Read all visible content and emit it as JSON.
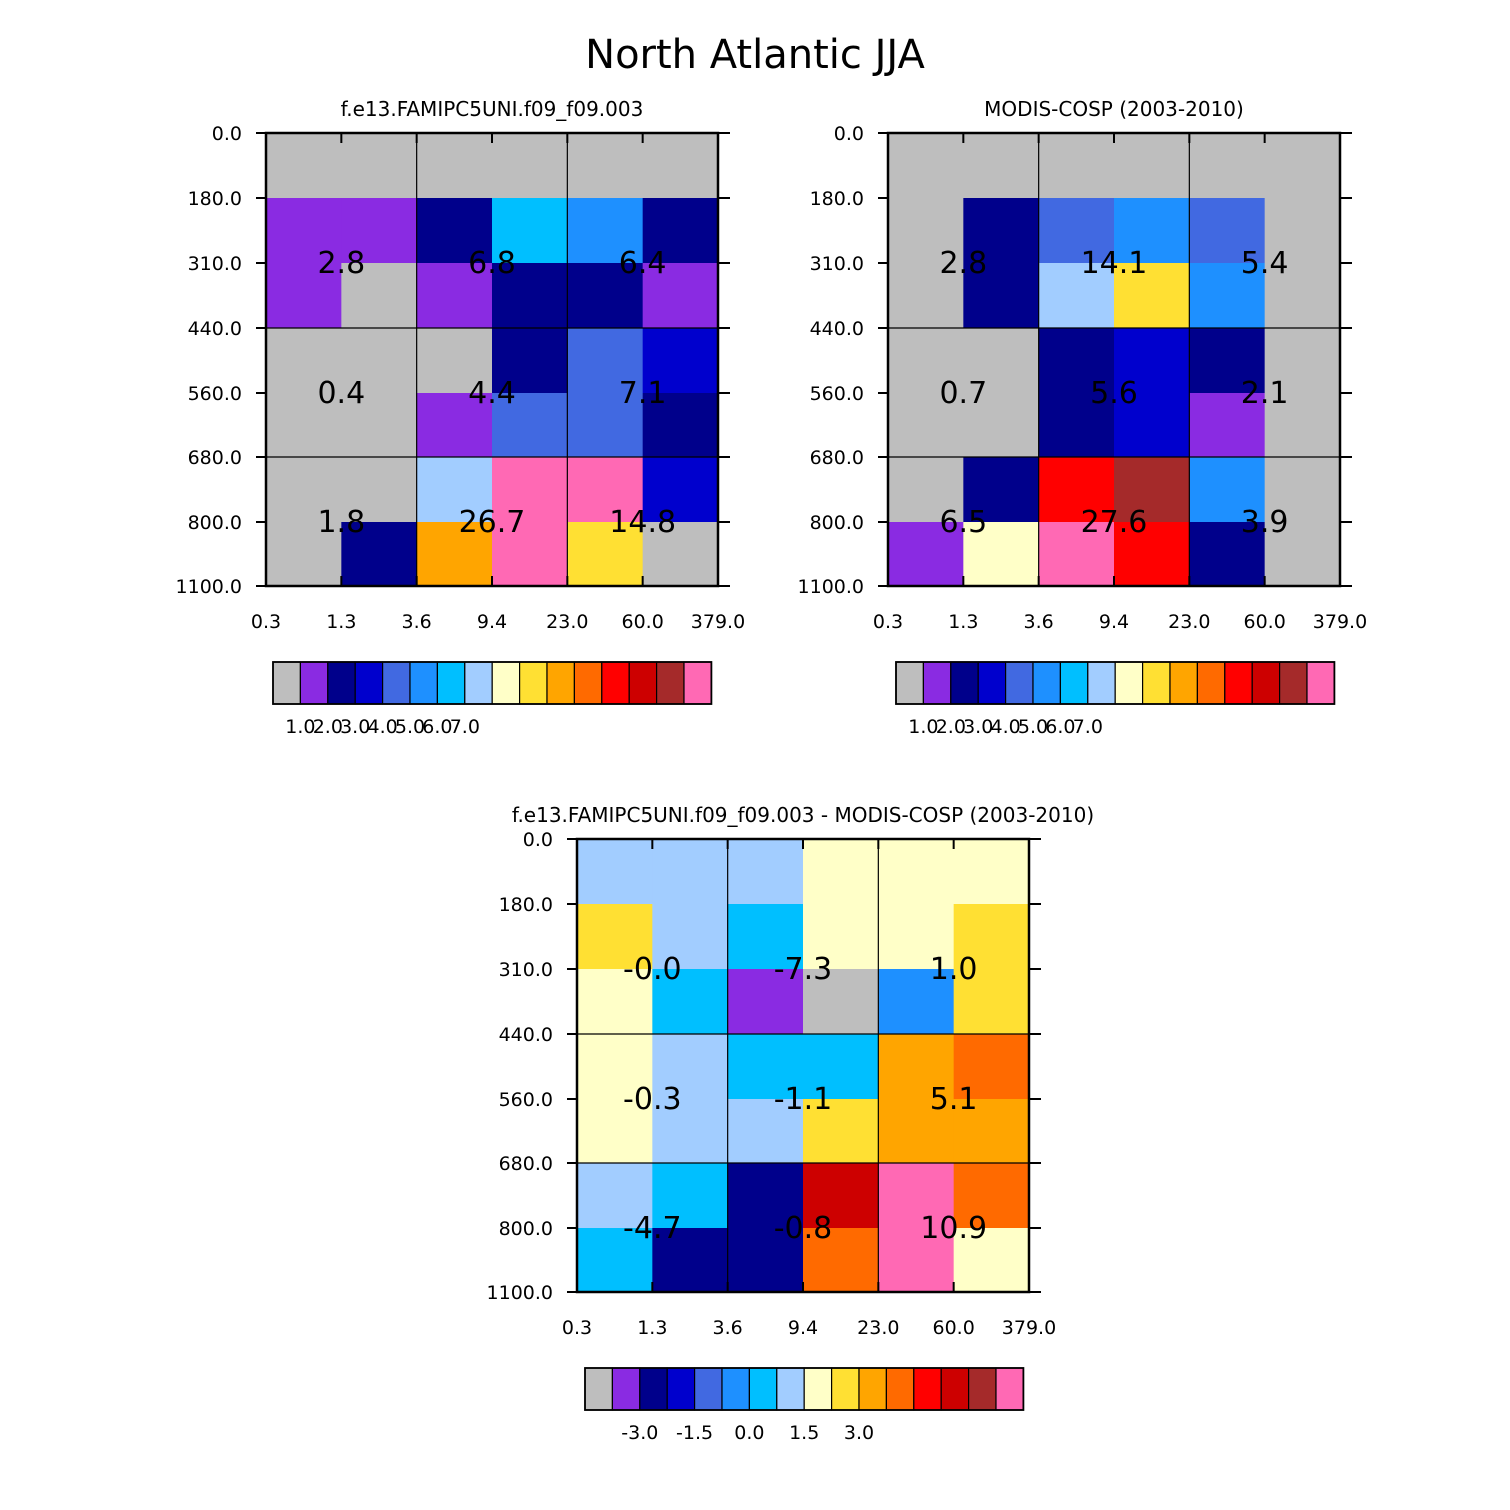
{
  "figure_title": "North Atlantic JJA",
  "palette": [
    "#bebebe",
    "#8a2be2",
    "#00008b",
    "#0000cd",
    "#4169e1",
    "#1e90ff",
    "#00bfff",
    "#a2cdff",
    "#ffffc8",
    "#ffe033",
    "#ffa500",
    "#ff6a00",
    "#ff0000",
    "#cd0000",
    "#a52a2a",
    "#ff69b4"
  ],
  "chart_data": [
    {
      "id": "model",
      "type": "heatmap",
      "title": "f.e13.FAMIPC5UNI.f09_f09.003",
      "x_ticks": [
        "0.3",
        "1.3",
        "3.6",
        "9.4",
        "23.0",
        "60.0",
        "379.0"
      ],
      "y_ticks": [
        "0.0",
        "180.0",
        "310.0",
        "440.0",
        "560.0",
        "680.0",
        "800.0",
        "1100.0"
      ],
      "cell_color_index": [
        [
          0,
          0,
          0,
          0,
          0,
          0
        ],
        [
          1,
          1,
          2,
          6,
          5,
          2
        ],
        [
          1,
          0,
          1,
          2,
          2,
          1
        ],
        [
          0,
          0,
          0,
          2,
          4,
          3
        ],
        [
          0,
          0,
          1,
          4,
          4,
          2
        ],
        [
          0,
          0,
          7,
          15,
          15,
          3
        ],
        [
          0,
          2,
          10,
          15,
          9,
          0
        ]
      ],
      "block_labels": [
        [
          "2.8",
          "6.8",
          "6.4"
        ],
        [
          "0.4",
          "4.4",
          "7.1"
        ],
        [
          "1.8",
          "26.7",
          "14.8"
        ]
      ],
      "colorbar_labels": [
        "1.0",
        "2.0",
        "3.0",
        "4.0",
        "5.0",
        "6.0",
        "7.0"
      ],
      "colorbar_label_start": 1
    },
    {
      "id": "obs",
      "type": "heatmap",
      "title": "MODIS-COSP (2003-2010)",
      "x_ticks": [
        "0.3",
        "1.3",
        "3.6",
        "9.4",
        "23.0",
        "60.0",
        "379.0"
      ],
      "y_ticks": [
        "0.0",
        "180.0",
        "310.0",
        "440.0",
        "560.0",
        "680.0",
        "800.0",
        "1100.0"
      ],
      "cell_color_index": [
        [
          0,
          0,
          0,
          0,
          0,
          0
        ],
        [
          0,
          2,
          4,
          5,
          4,
          0
        ],
        [
          0,
          2,
          7,
          9,
          5,
          0
        ],
        [
          0,
          0,
          2,
          3,
          2,
          0
        ],
        [
          0,
          0,
          2,
          3,
          1,
          0
        ],
        [
          0,
          2,
          12,
          14,
          5,
          0
        ],
        [
          1,
          8,
          15,
          12,
          2,
          0
        ]
      ],
      "block_labels": [
        [
          "2.8",
          "14.1",
          "5.4"
        ],
        [
          "0.7",
          "5.6",
          "2.1"
        ],
        [
          "6.5",
          "27.6",
          "3.9"
        ]
      ],
      "colorbar_labels": [
        "1.0",
        "2.0",
        "3.0",
        "4.0",
        "5.0",
        "6.0",
        "7.0"
      ],
      "colorbar_label_start": 1
    },
    {
      "id": "diff",
      "type": "heatmap",
      "title": "f.e13.FAMIPC5UNI.f09_f09.003 - MODIS-COSP (2003-2010)",
      "x_ticks": [
        "0.3",
        "1.3",
        "3.6",
        "9.4",
        "23.0",
        "60.0",
        "379.0"
      ],
      "y_ticks": [
        "0.0",
        "180.0",
        "310.0",
        "440.0",
        "560.0",
        "680.0",
        "800.0",
        "1100.0"
      ],
      "cell_color_index": [
        [
          7,
          7,
          7,
          8,
          8,
          8
        ],
        [
          9,
          7,
          6,
          8,
          8,
          9
        ],
        [
          8,
          6,
          1,
          0,
          5,
          9
        ],
        [
          8,
          7,
          6,
          6,
          10,
          11
        ],
        [
          8,
          7,
          7,
          9,
          10,
          10
        ],
        [
          7,
          6,
          2,
          13,
          15,
          11
        ],
        [
          6,
          2,
          2,
          11,
          15,
          8
        ]
      ],
      "block_labels": [
        [
          "-0.0",
          "-7.3",
          "1.0"
        ],
        [
          "-0.3",
          "-1.1",
          "5.1"
        ],
        [
          "-4.7",
          "-0.8",
          "10.9"
        ]
      ],
      "colorbar_labels": [
        "-3.0",
        "-1.5",
        "0.0",
        "1.5",
        "3.0"
      ],
      "colorbar_label_start": 2,
      "colorbar_label_step": 2
    }
  ]
}
